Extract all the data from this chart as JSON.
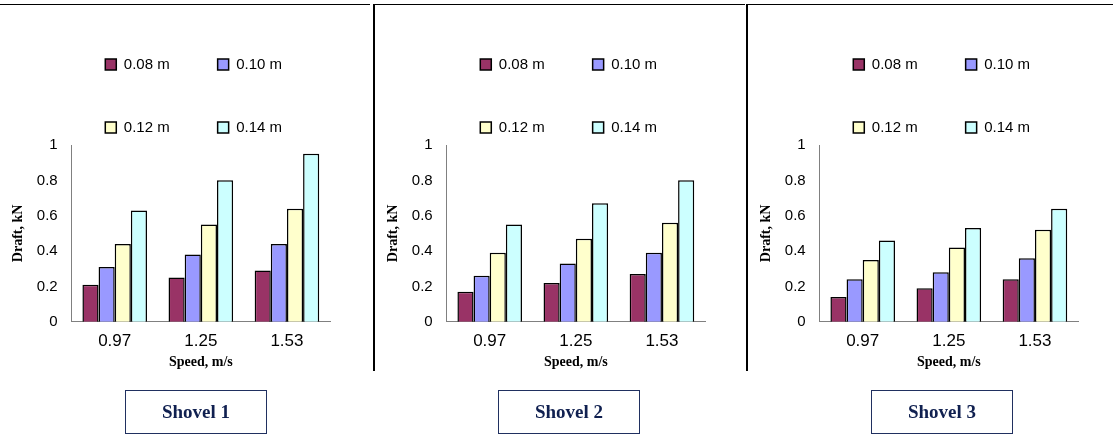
{
  "chart_data": [
    {
      "type": "bar",
      "title": "Shovel 1",
      "xlabel": "Speed, m/s",
      "ylabel": "Draft, kN",
      "categories": [
        "0.97",
        "1.25",
        "1.53"
      ],
      "ylim": [
        0,
        1
      ],
      "yticks": [
        0,
        0.2,
        0.4,
        0.6,
        0.8,
        1
      ],
      "grid": false,
      "legend": "top right",
      "series": [
        {
          "name": "0.08 m",
          "color": "#993366",
          "values": [
            0.21,
            0.25,
            0.29
          ]
        },
        {
          "name": "0.10 m",
          "color": "#9999ff",
          "values": [
            0.31,
            0.38,
            0.44
          ]
        },
        {
          "name": "0.12 m",
          "color": "#ffffcc",
          "values": [
            0.44,
            0.55,
            0.64
          ]
        },
        {
          "name": "0.14 m",
          "color": "#ccffff",
          "values": [
            0.63,
            0.8,
            0.95
          ]
        }
      ]
    },
    {
      "type": "bar",
      "title": "Shovel 2",
      "xlabel": "Speed, m/s",
      "ylabel": "Draft, kN",
      "categories": [
        "0.97",
        "1.25",
        "1.53"
      ],
      "ylim": [
        0,
        1
      ],
      "yticks": [
        0,
        0.2,
        0.4,
        0.6,
        0.8,
        1
      ],
      "grid": false,
      "legend": "top right",
      "series": [
        {
          "name": "0.08 m",
          "color": "#993366",
          "values": [
            0.17,
            0.22,
            0.27
          ]
        },
        {
          "name": "0.10 m",
          "color": "#9999ff",
          "values": [
            0.26,
            0.33,
            0.39
          ]
        },
        {
          "name": "0.12 m",
          "color": "#ffffcc",
          "values": [
            0.39,
            0.47,
            0.56
          ]
        },
        {
          "name": "0.14 m",
          "color": "#ccffff",
          "values": [
            0.55,
            0.67,
            0.8
          ]
        }
      ]
    },
    {
      "type": "bar",
      "title": "Shovel 3",
      "xlabel": "Speed, m/s",
      "ylabel": "Draft, kN",
      "categories": [
        "0.97",
        "1.25",
        "1.53"
      ],
      "ylim": [
        0,
        1
      ],
      "yticks": [
        0,
        0.2,
        0.4,
        0.6,
        0.8,
        1
      ],
      "grid": false,
      "legend": "top right",
      "series": [
        {
          "name": "0.08 m",
          "color": "#993366",
          "values": [
            0.14,
            0.19,
            0.24
          ]
        },
        {
          "name": "0.10 m",
          "color": "#9999ff",
          "values": [
            0.24,
            0.28,
            0.36
          ]
        },
        {
          "name": "0.12 m",
          "color": "#ffffcc",
          "values": [
            0.35,
            0.42,
            0.52
          ]
        },
        {
          "name": "0.14 m",
          "color": "#ccffff",
          "values": [
            0.46,
            0.53,
            0.64
          ]
        }
      ]
    }
  ]
}
